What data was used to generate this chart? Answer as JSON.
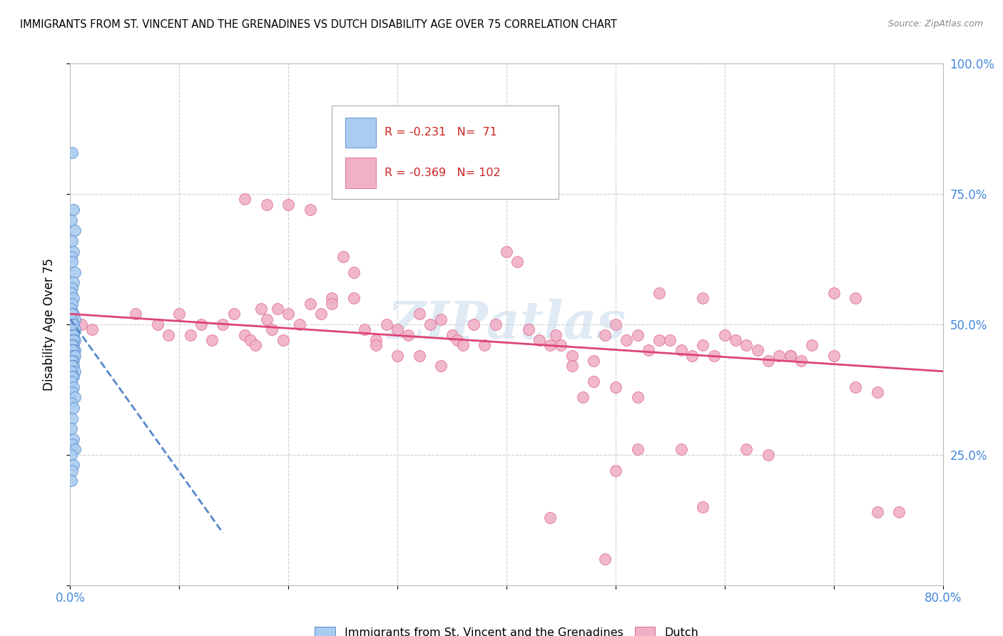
{
  "title": "IMMIGRANTS FROM ST. VINCENT AND THE GRENADINES VS DUTCH DISABILITY AGE OVER 75 CORRELATION CHART",
  "source": "Source: ZipAtlas.com",
  "ylabel": "Disability Age Over 75",
  "xlim": [
    0.0,
    0.8
  ],
  "ylim": [
    0.0,
    1.0
  ],
  "xticks": [
    0.0,
    0.1,
    0.2,
    0.3,
    0.4,
    0.5,
    0.6,
    0.7,
    0.8
  ],
  "xticklabels": [
    "0.0%",
    "",
    "",
    "",
    "",
    "",
    "",
    "",
    "80.0%"
  ],
  "yticks": [
    0.0,
    0.25,
    0.5,
    0.75,
    1.0
  ],
  "yticklabels_right": [
    "",
    "25.0%",
    "50.0%",
    "75.0%",
    "100.0%"
  ],
  "blue_R": "-0.231",
  "blue_N": "71",
  "pink_R": "-0.369",
  "pink_N": "102",
  "legend_label_blue": "Immigrants from St. Vincent and the Grenadines",
  "legend_label_pink": "Dutch",
  "blue_color": "#aaccf0",
  "pink_color": "#f0b0c8",
  "blue_edge_color": "#5588cc",
  "pink_edge_color": "#dd6688",
  "blue_line_color": "#5588cc",
  "pink_line_color": "#dd4477",
  "watermark": "ZIPatlas",
  "blue_scatter_x": [
    0.002,
    0.003,
    0.001,
    0.004,
    0.002,
    0.003,
    0.001,
    0.002,
    0.004,
    0.003,
    0.002,
    0.001,
    0.003,
    0.002,
    0.001,
    0.003,
    0.002,
    0.004,
    0.001,
    0.003,
    0.002,
    0.001,
    0.003,
    0.002,
    0.004,
    0.001,
    0.003,
    0.002,
    0.001,
    0.003,
    0.002,
    0.004,
    0.001,
    0.003,
    0.002,
    0.001,
    0.003,
    0.002,
    0.004,
    0.001,
    0.003,
    0.002,
    0.001,
    0.003,
    0.002,
    0.004,
    0.001,
    0.003,
    0.002,
    0.001,
    0.003,
    0.002,
    0.004,
    0.001,
    0.003,
    0.002,
    0.001,
    0.003,
    0.002,
    0.004,
    0.001,
    0.003,
    0.002,
    0.001,
    0.003,
    0.002,
    0.004,
    0.001,
    0.003,
    0.002,
    0.001
  ],
  "blue_scatter_y": [
    0.83,
    0.72,
    0.7,
    0.68,
    0.66,
    0.64,
    0.63,
    0.62,
    0.6,
    0.58,
    0.57,
    0.56,
    0.55,
    0.54,
    0.53,
    0.52,
    0.52,
    0.51,
    0.51,
    0.5,
    0.5,
    0.5,
    0.5,
    0.49,
    0.49,
    0.49,
    0.48,
    0.48,
    0.48,
    0.48,
    0.47,
    0.47,
    0.47,
    0.47,
    0.46,
    0.46,
    0.46,
    0.46,
    0.45,
    0.45,
    0.45,
    0.45,
    0.44,
    0.44,
    0.44,
    0.44,
    0.43,
    0.43,
    0.43,
    0.42,
    0.42,
    0.42,
    0.41,
    0.41,
    0.4,
    0.4,
    0.39,
    0.38,
    0.37,
    0.36,
    0.35,
    0.34,
    0.32,
    0.3,
    0.28,
    0.27,
    0.26,
    0.25,
    0.23,
    0.22,
    0.2
  ],
  "pink_scatter_x": [
    0.01,
    0.02,
    0.06,
    0.08,
    0.09,
    0.1,
    0.11,
    0.12,
    0.13,
    0.14,
    0.15,
    0.16,
    0.165,
    0.17,
    0.175,
    0.18,
    0.185,
    0.19,
    0.195,
    0.2,
    0.21,
    0.22,
    0.23,
    0.24,
    0.25,
    0.26,
    0.27,
    0.28,
    0.29,
    0.3,
    0.31,
    0.32,
    0.33,
    0.34,
    0.35,
    0.355,
    0.36,
    0.37,
    0.38,
    0.39,
    0.4,
    0.41,
    0.42,
    0.43,
    0.44,
    0.445,
    0.45,
    0.46,
    0.47,
    0.48,
    0.49,
    0.5,
    0.51,
    0.52,
    0.53,
    0.54,
    0.55,
    0.56,
    0.57,
    0.58,
    0.59,
    0.6,
    0.61,
    0.62,
    0.63,
    0.64,
    0.65,
    0.66,
    0.67,
    0.68,
    0.7,
    0.72,
    0.74,
    0.76,
    0.16,
    0.18,
    0.2,
    0.22,
    0.24,
    0.26,
    0.28,
    0.3,
    0.32,
    0.34,
    0.46,
    0.48,
    0.5,
    0.52,
    0.54,
    0.58,
    0.62,
    0.64,
    0.66,
    0.7,
    0.72,
    0.74,
    0.44,
    0.5,
    0.52,
    0.56,
    0.58,
    0.49
  ],
  "pink_scatter_y": [
    0.5,
    0.49,
    0.52,
    0.5,
    0.48,
    0.52,
    0.48,
    0.5,
    0.47,
    0.5,
    0.52,
    0.48,
    0.47,
    0.46,
    0.53,
    0.51,
    0.49,
    0.53,
    0.47,
    0.52,
    0.5,
    0.54,
    0.52,
    0.55,
    0.63,
    0.6,
    0.49,
    0.47,
    0.5,
    0.49,
    0.48,
    0.52,
    0.5,
    0.51,
    0.48,
    0.47,
    0.46,
    0.5,
    0.46,
    0.5,
    0.64,
    0.62,
    0.49,
    0.47,
    0.46,
    0.48,
    0.46,
    0.44,
    0.36,
    0.43,
    0.48,
    0.5,
    0.47,
    0.48,
    0.45,
    0.47,
    0.47,
    0.45,
    0.44,
    0.46,
    0.44,
    0.48,
    0.47,
    0.46,
    0.45,
    0.43,
    0.44,
    0.44,
    0.43,
    0.46,
    0.44,
    0.38,
    0.14,
    0.14,
    0.74,
    0.73,
    0.73,
    0.72,
    0.54,
    0.55,
    0.46,
    0.44,
    0.44,
    0.42,
    0.42,
    0.39,
    0.38,
    0.36,
    0.56,
    0.55,
    0.26,
    0.25,
    0.44,
    0.56,
    0.55,
    0.37,
    0.13,
    0.22,
    0.26,
    0.26,
    0.15,
    0.05
  ]
}
